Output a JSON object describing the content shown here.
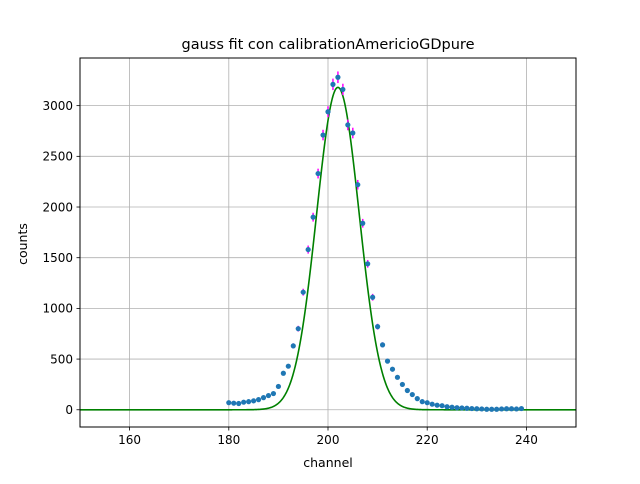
{
  "chart_data": {
    "type": "scatter",
    "title": "gauss fit con calibrationAmericioGDpure",
    "xlabel": "channel",
    "ylabel": "counts",
    "xlim": [
      150,
      250
    ],
    "ylim": [
      -170,
      3470
    ],
    "xticks": [
      160,
      180,
      200,
      220,
      240
    ],
    "yticks": [
      0,
      500,
      1000,
      1500,
      2000,
      2500,
      3000
    ],
    "grid": true,
    "series": [
      {
        "kind": "errorbar-points",
        "color": "#1f77b4",
        "errorbar_color": "#ff00ff",
        "x": [
          180,
          181,
          182,
          183,
          184,
          185,
          186,
          187,
          188,
          189,
          190,
          191,
          192,
          193,
          194,
          195,
          196,
          197,
          198,
          199,
          200,
          201,
          202,
          203,
          204,
          205,
          206,
          207,
          208,
          209,
          210,
          211,
          212,
          213,
          214,
          215,
          216,
          217,
          218,
          219,
          220,
          221,
          222,
          223,
          224,
          225,
          226,
          227,
          228,
          229,
          230,
          231,
          232,
          233,
          234,
          235,
          236,
          237,
          238,
          239
        ],
        "y": [
          70,
          65,
          62,
          75,
          80,
          88,
          100,
          120,
          140,
          160,
          230,
          360,
          430,
          630,
          800,
          1160,
          1580,
          1900,
          2330,
          2710,
          2940,
          3210,
          3280,
          3160,
          2810,
          2730,
          2220,
          1840,
          1440,
          1110,
          820,
          640,
          480,
          400,
          320,
          250,
          190,
          150,
          110,
          80,
          70,
          55,
          45,
          40,
          30,
          25,
          20,
          18,
          15,
          12,
          10,
          8,
          5,
          5,
          5,
          8,
          10,
          10,
          8,
          12
        ]
      },
      {
        "kind": "fit-line",
        "color": "#008000",
        "function": "gauss",
        "amplitude": 3180,
        "mean": 202,
        "sigma": 4.3,
        "x_range": [
          150,
          250
        ]
      }
    ]
  }
}
